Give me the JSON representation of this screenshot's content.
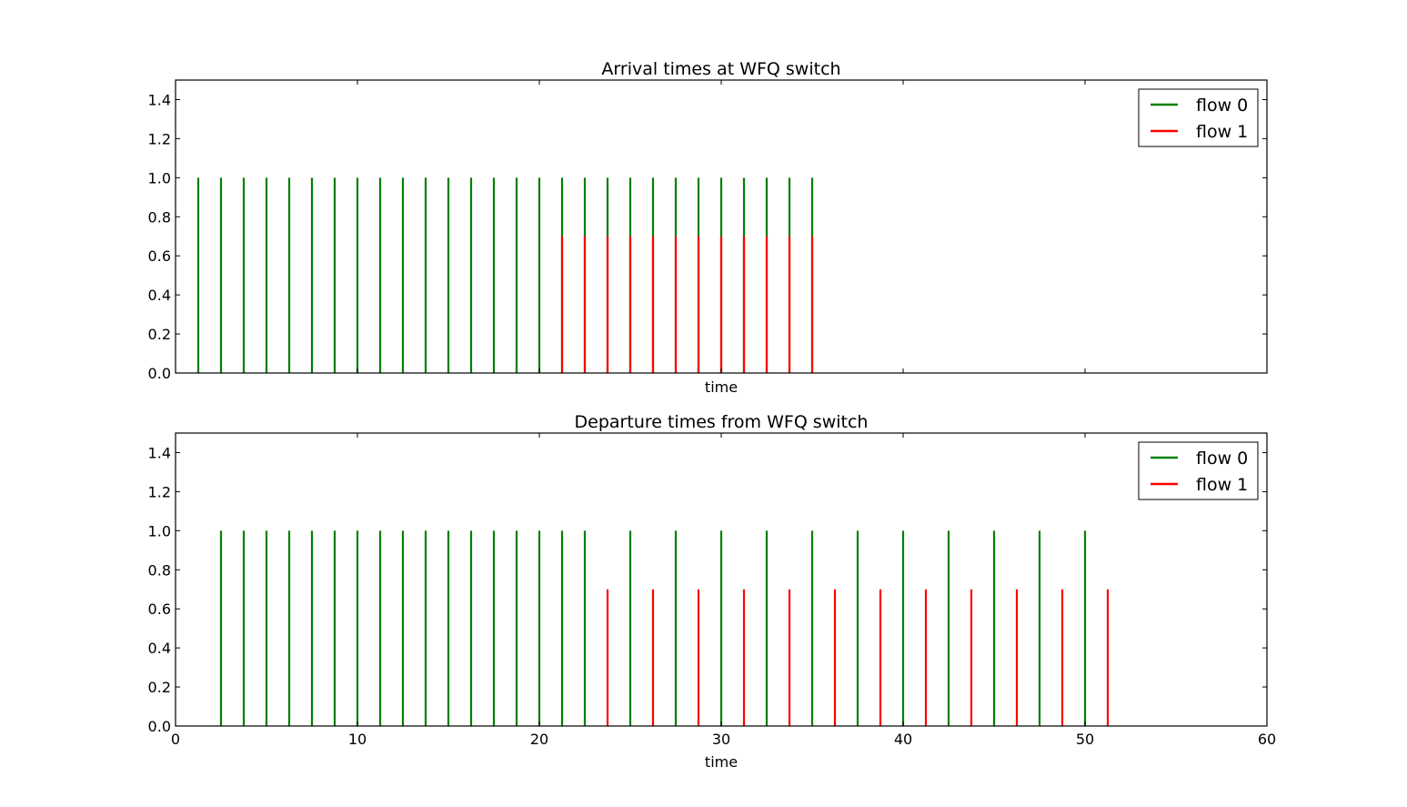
{
  "chart_data": [
    {
      "type": "line",
      "title": "Arrival times at WFQ switch",
      "xlabel": "time",
      "ylabel": "",
      "xlim": [
        0,
        60
      ],
      "ylim": [
        0,
        1.5
      ],
      "xticks": [
        0,
        10,
        20,
        30,
        40,
        50,
        60
      ],
      "yticks": [
        "0.0",
        "0.2",
        "0.4",
        "0.6",
        "0.8",
        "1.0",
        "1.2",
        "1.4"
      ],
      "show_xtick_labels": false,
      "grid": false,
      "legend_position": "upper right",
      "series": [
        {
          "name": "flow 0",
          "color": "#008000",
          "height": 1.0,
          "x": [
            1.25,
            2.5,
            3.75,
            5.0,
            6.25,
            7.5,
            8.75,
            10.0,
            11.25,
            12.5,
            13.75,
            15.0,
            16.25,
            17.5,
            18.75,
            20.0,
            21.25,
            22.5,
            23.75,
            25.0,
            26.25,
            27.5,
            28.75,
            30.0,
            31.25,
            32.5,
            33.75,
            35.0
          ]
        },
        {
          "name": "flow 1",
          "color": "#ff0000",
          "height": 0.7,
          "x": [
            21.25,
            22.5,
            23.75,
            25.0,
            26.25,
            27.5,
            28.75,
            30.0,
            31.25,
            32.5,
            33.75,
            35.0
          ]
        }
      ]
    },
    {
      "type": "line",
      "title": "Departure times from WFQ switch",
      "xlabel": "time",
      "ylabel": "",
      "xlim": [
        0,
        60
      ],
      "ylim": [
        0,
        1.5
      ],
      "xticks": [
        0,
        10,
        20,
        30,
        40,
        50,
        60
      ],
      "yticks": [
        "0.0",
        "0.2",
        "0.4",
        "0.6",
        "0.8",
        "1.0",
        "1.2",
        "1.4"
      ],
      "show_xtick_labels": true,
      "grid": false,
      "legend_position": "upper right",
      "series": [
        {
          "name": "flow 0",
          "color": "#008000",
          "height": 1.0,
          "x": [
            2.5,
            3.75,
            5.0,
            6.25,
            7.5,
            8.75,
            10.0,
            11.25,
            12.5,
            13.75,
            15.0,
            16.25,
            17.5,
            18.75,
            20.0,
            21.25,
            22.5,
            25.0,
            27.5,
            30.0,
            32.5,
            35.0,
            37.5,
            40.0,
            42.5,
            45.0,
            47.5,
            50.0
          ]
        },
        {
          "name": "flow 1",
          "color": "#ff0000",
          "height": 0.7,
          "x": [
            23.75,
            26.25,
            28.75,
            31.25,
            33.75,
            36.25,
            38.75,
            41.25,
            43.75,
            46.25,
            48.75,
            51.25
          ]
        }
      ]
    }
  ]
}
